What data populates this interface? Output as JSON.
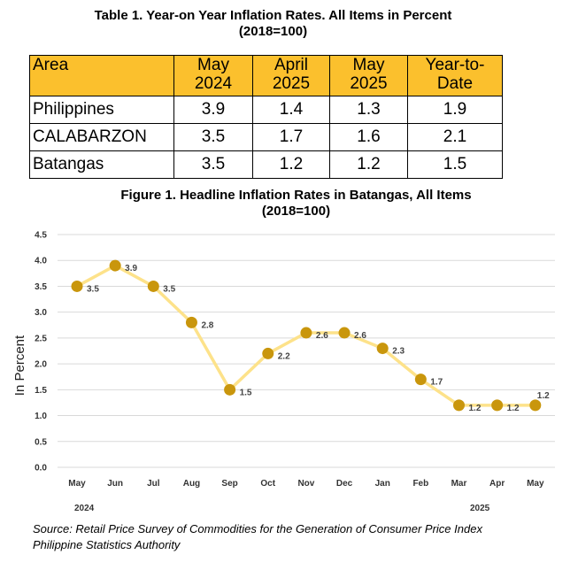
{
  "table": {
    "title_line1": "Table 1. Year-on Year Inflation Rates.  All Items in Percent",
    "title_line2": "(2018=100)",
    "headers": [
      {
        "l1": "Area",
        "l2": ""
      },
      {
        "l1": "May",
        "l2": "2024"
      },
      {
        "l1": "April",
        "l2": "2025"
      },
      {
        "l1": "May",
        "l2": "2025"
      },
      {
        "l1": "Year-to-",
        "l2": "Date"
      }
    ],
    "rows": [
      {
        "area": "Philippines",
        "v": [
          "3.9",
          "1.4",
          "1.3",
          "1.9"
        ]
      },
      {
        "area": "CALABARZON",
        "v": [
          "3.5",
          "1.7",
          "1.6",
          "2.1"
        ]
      },
      {
        "area": "Batangas",
        "v": [
          "3.5",
          "1.2",
          "1.2",
          "1.5"
        ]
      }
    ],
    "header_color": "#fbc02d"
  },
  "chart_data": {
    "type": "line",
    "title": "Figure 1. Headline Inflation Rates in Batangas, All Items",
    "subtitle": "(2018=100)",
    "ylabel": "In Percent",
    "ylim": [
      0,
      4.5
    ],
    "yticks": [
      "0.0",
      "0.5",
      "1.0",
      "1.5",
      "2.0",
      "2.5",
      "3.0",
      "3.5",
      "4.0",
      "4.5"
    ],
    "categories": [
      "May",
      "Jun",
      "Jul",
      "Aug",
      "Sep",
      "Oct",
      "Nov",
      "Dec",
      "Jan",
      "Feb",
      "Mar",
      "Apr",
      "May"
    ],
    "year_labels": [
      "2024",
      "2025"
    ],
    "values": [
      3.5,
      3.9,
      3.5,
      2.8,
      1.5,
      2.2,
      2.6,
      2.6,
      2.3,
      1.7,
      1.2,
      1.2,
      1.2
    ],
    "value_labels": [
      "3.5",
      "3.9",
      "3.5",
      "2.8",
      "1.5",
      "2.2",
      "2.6",
      "2.6",
      "2.3",
      "1.7",
      "1.2",
      "1.2",
      "1.2"
    ],
    "grid": true,
    "line_color": "#fde28a",
    "marker_color": "#c9960c"
  },
  "source": {
    "line1": "Source: Retail Price Survey of Commodities for the Generation of Consumer Price Index",
    "line2": "Philippine Statistics Authority"
  }
}
